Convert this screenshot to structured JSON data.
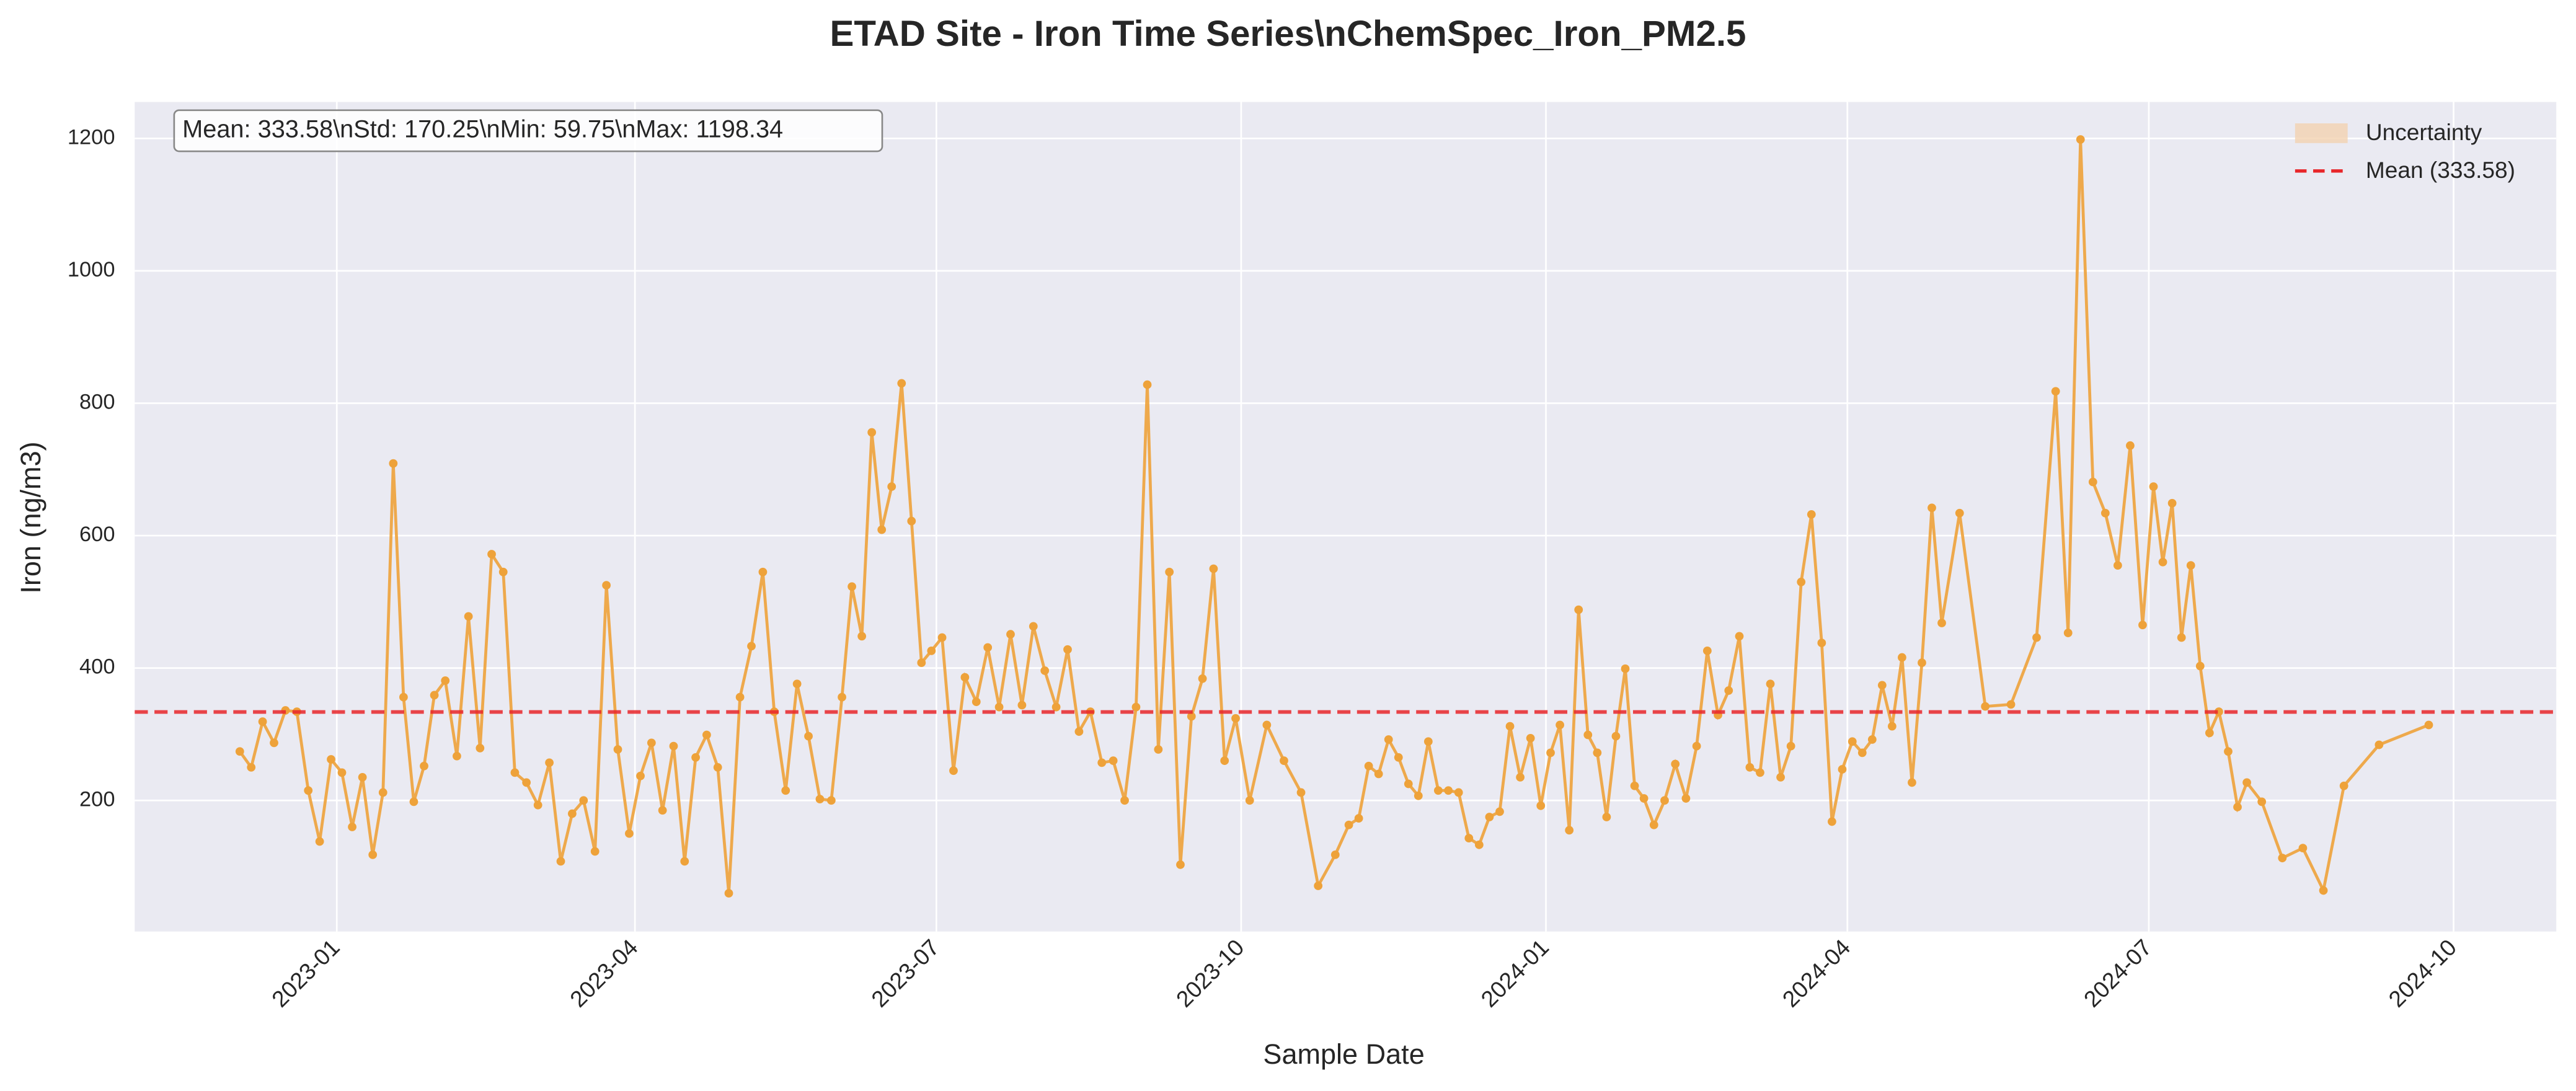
{
  "chart_data": {
    "type": "line",
    "title": "ETAD Site - Iron Time Series\\nChemSpec_Iron_PM2.5",
    "xlabel": "Sample Date",
    "ylabel": "Iron (ng/m3)",
    "stats_text": "Mean: 333.58\\nStd: 170.25\\nMin: 59.75\\nMax: 1198.34",
    "x": [
      "2022-12",
      "2022-12",
      "2022-12",
      "2022-12",
      "2022-12",
      "2022-12",
      "2022-12",
      "2022-12",
      "2022-12",
      "2023-01",
      "2023-01",
      "2023-01",
      "2023-01",
      "2023-01",
      "2023-01",
      "2023-01",
      "2023-01",
      "2023-01",
      "2023-01",
      "2023-02",
      "2023-02",
      "2023-02",
      "2023-02",
      "2023-02",
      "2023-02",
      "2023-02",
      "2023-02",
      "2023-03",
      "2023-03",
      "2023-03",
      "2023-03",
      "2023-03",
      "2023-03",
      "2023-03",
      "2023-03",
      "2023-03",
      "2023-04",
      "2023-04",
      "2023-04",
      "2023-04",
      "2023-04",
      "2023-04",
      "2023-04",
      "2023-04",
      "2023-04",
      "2023-05",
      "2023-05",
      "2023-05",
      "2023-05",
      "2023-05",
      "2023-05",
      "2023-05",
      "2023-05",
      "2023-05",
      "2023-06",
      "2023-06",
      "2023-06",
      "2023-06",
      "2023-06",
      "2023-06",
      "2023-06",
      "2023-06",
      "2023-06",
      "2023-06",
      "2023-07",
      "2023-07",
      "2023-07",
      "2023-07",
      "2023-07",
      "2023-07",
      "2023-07",
      "2023-07",
      "2023-07",
      "2023-08",
      "2023-08",
      "2023-08",
      "2023-08",
      "2023-08",
      "2023-08",
      "2023-08",
      "2023-08",
      "2023-08",
      "2023-09",
      "2023-09",
      "2023-09",
      "2023-09",
      "2023-09",
      "2023-09",
      "2023-09",
      "2023-09",
      "2023-09",
      "2023-10",
      "2023-10",
      "2023-10",
      "2023-10",
      "2023-10",
      "2023-10",
      "2023-11",
      "2023-11",
      "2023-11",
      "2023-11",
      "2023-11",
      "2023-11",
      "2023-11",
      "2023-11",
      "2023-11",
      "2023-11",
      "2023-12",
      "2023-12",
      "2023-12",
      "2023-12",
      "2023-12",
      "2023-12",
      "2023-12",
      "2023-12",
      "2023-12",
      "2023-12",
      "2024-01",
      "2024-01",
      "2024-01",
      "2024-01",
      "2024-01",
      "2024-01",
      "2024-01",
      "2024-01",
      "2024-01",
      "2024-01",
      "2024-01",
      "2024-02",
      "2024-02",
      "2024-02",
      "2024-02",
      "2024-02",
      "2024-02",
      "2024-02",
      "2024-02",
      "2024-02",
      "2024-03",
      "2024-03",
      "2024-03",
      "2024-03",
      "2024-03",
      "2024-03",
      "2024-03",
      "2024-03",
      "2024-03",
      "2024-03",
      "2024-04",
      "2024-04",
      "2024-04",
      "2024-04",
      "2024-04",
      "2024-04",
      "2024-04",
      "2024-04",
      "2024-04",
      "2024-04",
      "2024-05",
      "2024-05",
      "2024-05",
      "2024-05",
      "2024-06",
      "2024-06",
      "2024-06",
      "2024-06",
      "2024-06",
      "2024-06",
      "2024-06",
      "2024-06",
      "2024-07",
      "2024-07",
      "2024-07",
      "2024-07",
      "2024-07",
      "2024-07",
      "2024-07",
      "2024-07",
      "2024-07",
      "2024-07",
      "2024-07",
      "2024-08",
      "2024-08",
      "2024-08",
      "2024-08",
      "2024-08",
      "2024-09",
      "2024-09"
    ],
    "series": [
      {
        "name": "Iron",
        "color": "#eea23a",
        "values": [
          274,
          250,
          319,
          287,
          336,
          334,
          215,
          138,
          262,
          242,
          160,
          235,
          118,
          212,
          709,
          356,
          198,
          252,
          359,
          381,
          267,
          478,
          279,
          572,
          545,
          242,
          227,
          193,
          257,
          108,
          180,
          200,
          123,
          525,
          277,
          150,
          237,
          287,
          185,
          282,
          108,
          265,
          299,
          250,
          59.75,
          356,
          433,
          545,
          334,
          215,
          376,
          297,
          202,
          200,
          356,
          523,
          448,
          756,
          609,
          674,
          830,
          622,
          408,
          426,
          446,
          245,
          386,
          349,
          431,
          341,
          451,
          344,
          463,
          396,
          341,
          428,
          304,
          334,
          257,
          260,
          200,
          341,
          828,
          277,
          545,
          103,
          327,
          384,
          550,
          260,
          324,
          200,
          314,
          260,
          212,
          71,
          118,
          163,
          173,
          252,
          240,
          292,
          265,
          225,
          207,
          289,
          215,
          215,
          212,
          143,
          133,
          175,
          183,
          312,
          235,
          294,
          192,
          272,
          314,
          155,
          488,
          299,
          272,
          175,
          297,
          399,
          222,
          203,
          163,
          200,
          255,
          203,
          282,
          426,
          329,
          366,
          448,
          250,
          242,
          376,
          235,
          282,
          530,
          632,
          438,
          168,
          247,
          289,
          272,
          292,
          374,
          312,
          416,
          227,
          408,
          642,
          468,
          634,
          342,
          345,
          446,
          818,
          453,
          1198.34,
          681,
          634,
          555,
          736,
          465,
          674,
          560,
          649,
          446,
          555,
          403,
          302,
          334,
          274,
          190,
          227,
          198,
          113,
          128,
          64,
          222,
          284,
          314
        ]
      }
    ],
    "mean": {
      "name": "Mean (333.58)",
      "value": 333.58,
      "color": "#e8262a"
    },
    "uncertainty": {
      "name": "Uncertainty",
      "color": "#f2d2b0"
    },
    "xlim": [
      "2022-11",
      "2024-10"
    ],
    "xticks": [
      "2023-01",
      "2023-04",
      "2023-07",
      "2023-10",
      "2024-01",
      "2024-04",
      "2024-07",
      "2024-10"
    ],
    "ylim": [
      2,
      1255
    ],
    "yticks": [
      200,
      400,
      600,
      800,
      1000,
      1200
    ],
    "grid": true,
    "legend": "upper right"
  }
}
